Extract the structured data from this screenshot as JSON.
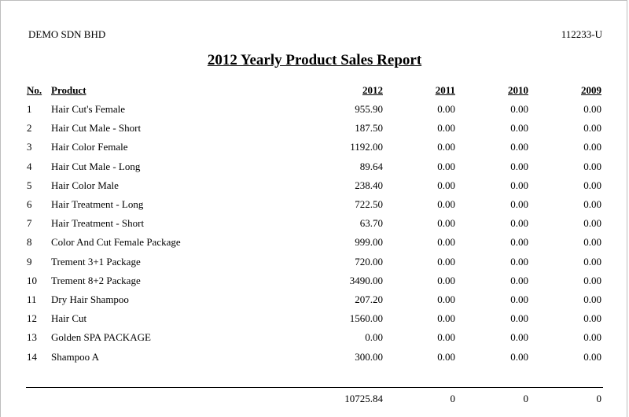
{
  "header": {
    "company": "DEMO SDN BHD",
    "reg_no": "112233-U",
    "title": "2012 Yearly Product Sales Report"
  },
  "columns": {
    "no": "No.",
    "product": "Product",
    "y2012": "2012",
    "y2011": "2011",
    "y2010": "2010",
    "y2009": "2009"
  },
  "rows": [
    {
      "no": "1",
      "product": "Hair Cut's Female",
      "y2012": "955.90",
      "y2011": "0.00",
      "y2010": "0.00",
      "y2009": "0.00"
    },
    {
      "no": "2",
      "product": "Hair Cut Male - Short",
      "y2012": "187.50",
      "y2011": "0.00",
      "y2010": "0.00",
      "y2009": "0.00"
    },
    {
      "no": "3",
      "product": "Hair Color Female",
      "y2012": "1192.00",
      "y2011": "0.00",
      "y2010": "0.00",
      "y2009": "0.00"
    },
    {
      "no": "4",
      "product": "Hair Cut Male - Long",
      "y2012": "89.64",
      "y2011": "0.00",
      "y2010": "0.00",
      "y2009": "0.00"
    },
    {
      "no": "5",
      "product": "Hair Color Male",
      "y2012": "238.40",
      "y2011": "0.00",
      "y2010": "0.00",
      "y2009": "0.00"
    },
    {
      "no": "6",
      "product": "Hair Treatment - Long",
      "y2012": "722.50",
      "y2011": "0.00",
      "y2010": "0.00",
      "y2009": "0.00"
    },
    {
      "no": "7",
      "product": "Hair Treatment - Short",
      "y2012": "63.70",
      "y2011": "0.00",
      "y2010": "0.00",
      "y2009": "0.00"
    },
    {
      "no": "8",
      "product": "Color And Cut Female Package",
      "y2012": "999.00",
      "y2011": "0.00",
      "y2010": "0.00",
      "y2009": "0.00"
    },
    {
      "no": "9",
      "product": "Trement 3+1 Package",
      "y2012": "720.00",
      "y2011": "0.00",
      "y2010": "0.00",
      "y2009": "0.00"
    },
    {
      "no": "10",
      "product": "Trement 8+2 Package",
      "y2012": "3490.00",
      "y2011": "0.00",
      "y2010": "0.00",
      "y2009": "0.00"
    },
    {
      "no": "11",
      "product": "Dry Hair Shampoo",
      "y2012": "207.20",
      "y2011": "0.00",
      "y2010": "0.00",
      "y2009": "0.00"
    },
    {
      "no": "12",
      "product": "Hair Cut",
      "y2012": "1560.00",
      "y2011": "0.00",
      "y2010": "0.00",
      "y2009": "0.00"
    },
    {
      "no": "13",
      "product": "Golden SPA PACKAGE",
      "y2012": "0.00",
      "y2011": "0.00",
      "y2010": "0.00",
      "y2009": "0.00"
    },
    {
      "no": "14",
      "product": "Shampoo A",
      "y2012": "300.00",
      "y2011": "0.00",
      "y2010": "0.00",
      "y2009": "0.00"
    }
  ],
  "totals": {
    "y2012": "10725.84",
    "y2011": "0",
    "y2010": "0",
    "y2009": "0"
  }
}
